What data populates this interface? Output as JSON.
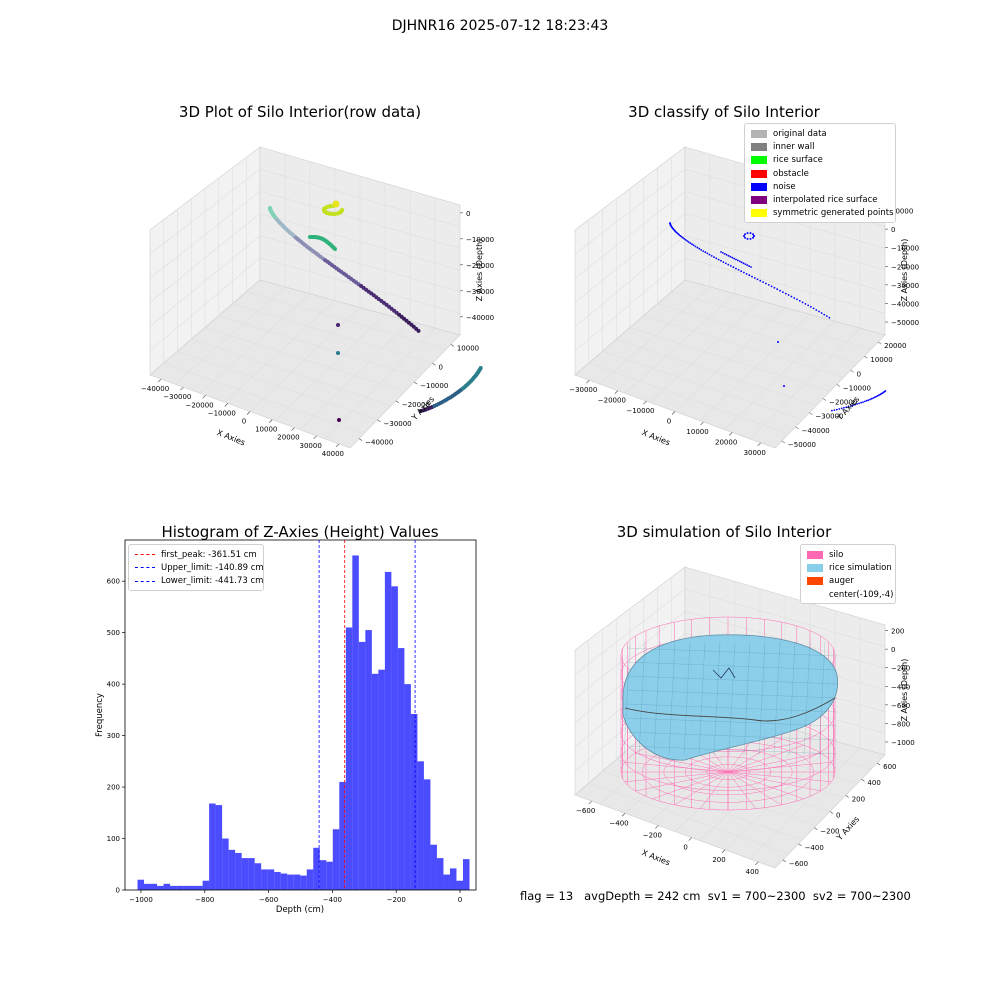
{
  "figure_title": "DJHNR16 2025-07-12 18:23:43",
  "panels": {
    "raw": {
      "title": "3D Plot of Silo Interior(row data)",
      "x_label": "X Axies",
      "y_label": "Y Axies",
      "z_label": "Z Axies (Depth)",
      "x_ticks": [
        "−40000",
        "−30000",
        "−20000",
        "−10000",
        "0",
        "10000",
        "20000",
        "30000",
        "40000"
      ],
      "y_ticks": [
        "10000",
        "0",
        "−10000",
        "−20000",
        "−30000",
        "−40000"
      ],
      "z_ticks": [
        "0",
        "−10000",
        "−20000",
        "−30000",
        "−40000"
      ]
    },
    "classify": {
      "title": "3D classify of Silo Interior",
      "x_label": "X Axies",
      "y_label": "Y Axies",
      "z_label": "Z Axies (Depth)",
      "x_ticks": [
        "−30000",
        "−20000",
        "−10000",
        "0",
        "10000",
        "20000",
        "30000"
      ],
      "y_ticks": [
        "20000",
        "10000",
        "0",
        "−10000",
        "−20000",
        "−30000",
        "−40000",
        "−50000"
      ],
      "z_ticks": [
        "10000",
        "0",
        "−10000",
        "−20000",
        "−30000",
        "−40000",
        "−50000"
      ],
      "legend": [
        {
          "label": "original data",
          "color": "#b3b3b3"
        },
        {
          "label": "inner wall",
          "color": "#808080"
        },
        {
          "label": "rice surface",
          "color": "#00ff00"
        },
        {
          "label": "obstacle",
          "color": "#ff0000"
        },
        {
          "label": "noise",
          "color": "#0000ff"
        },
        {
          "label": "interpolated rice surface",
          "color": "#800080"
        },
        {
          "label": "symmetric generated points",
          "color": "#ffff00"
        }
      ]
    },
    "simulation": {
      "title": "3D simulation of Silo Interior",
      "x_label": "X Axies",
      "y_label": "Y Axies",
      "z_label": "Z Axies (Depth)",
      "x_ticks": [
        "−600",
        "−400",
        "−200",
        "0",
        "200",
        "400"
      ],
      "y_ticks": [
        "600",
        "400",
        "200",
        "0",
        "−200",
        "−400",
        "−600"
      ],
      "z_ticks": [
        "200",
        "0",
        "−200",
        "−400",
        "−600",
        "−800",
        "−1000"
      ],
      "legend": [
        {
          "label": "silo",
          "color": "#ff69b4"
        },
        {
          "label": "rice simulation",
          "color": "#87ceeb"
        },
        {
          "label": "auger",
          "color": "#ff4500"
        },
        {
          "label": "center(-109,-4)",
          "color": "transparent"
        }
      ]
    }
  },
  "status_text": "flag = 13   avgDepth = 242 cm  sv1 = 700~2300  sv2 = 700~2300",
  "chart_data": [
    {
      "type": "bar",
      "title": "Histogram of Z-Axies (Height) Values",
      "xlabel": "Depth (cm)",
      "ylabel": "Frequency",
      "xlim": [
        -1050,
        50
      ],
      "ylim": [
        0,
        680
      ],
      "x_ticks": [
        -1000,
        -800,
        -600,
        -400,
        -200,
        0
      ],
      "y_ticks": [
        0,
        100,
        200,
        300,
        400,
        500,
        600
      ],
      "x_tick_labels": [
        "−1000",
        "−800",
        "−600",
        "−400",
        "−200",
        "0"
      ],
      "bin_width": 20.4,
      "bin_start": -1010.8,
      "color": "#0000ff",
      "values": [
        20,
        12,
        12,
        8,
        12,
        8,
        8,
        8,
        8,
        8,
        18,
        168,
        165,
        100,
        78,
        72,
        62,
        62,
        52,
        40,
        40,
        35,
        32,
        30,
        30,
        28,
        40,
        82,
        58,
        55,
        118,
        210,
        510,
        650,
        482,
        505,
        420,
        428,
        618,
        590,
        470,
        400,
        342,
        250,
        215,
        88,
        62,
        30,
        42,
        18,
        60
      ],
      "reference_lines": [
        {
          "label": "first_peak: -361.51 cm",
          "x": -361.51,
          "color": "#ff0000"
        },
        {
          "label": "Upper_limit: -140.89 cm",
          "x": -140.89,
          "color": "#0000ff"
        },
        {
          "label": "Lower_limit: -441.73 cm",
          "x": -441.73,
          "color": "#0000ff"
        }
      ]
    }
  ]
}
